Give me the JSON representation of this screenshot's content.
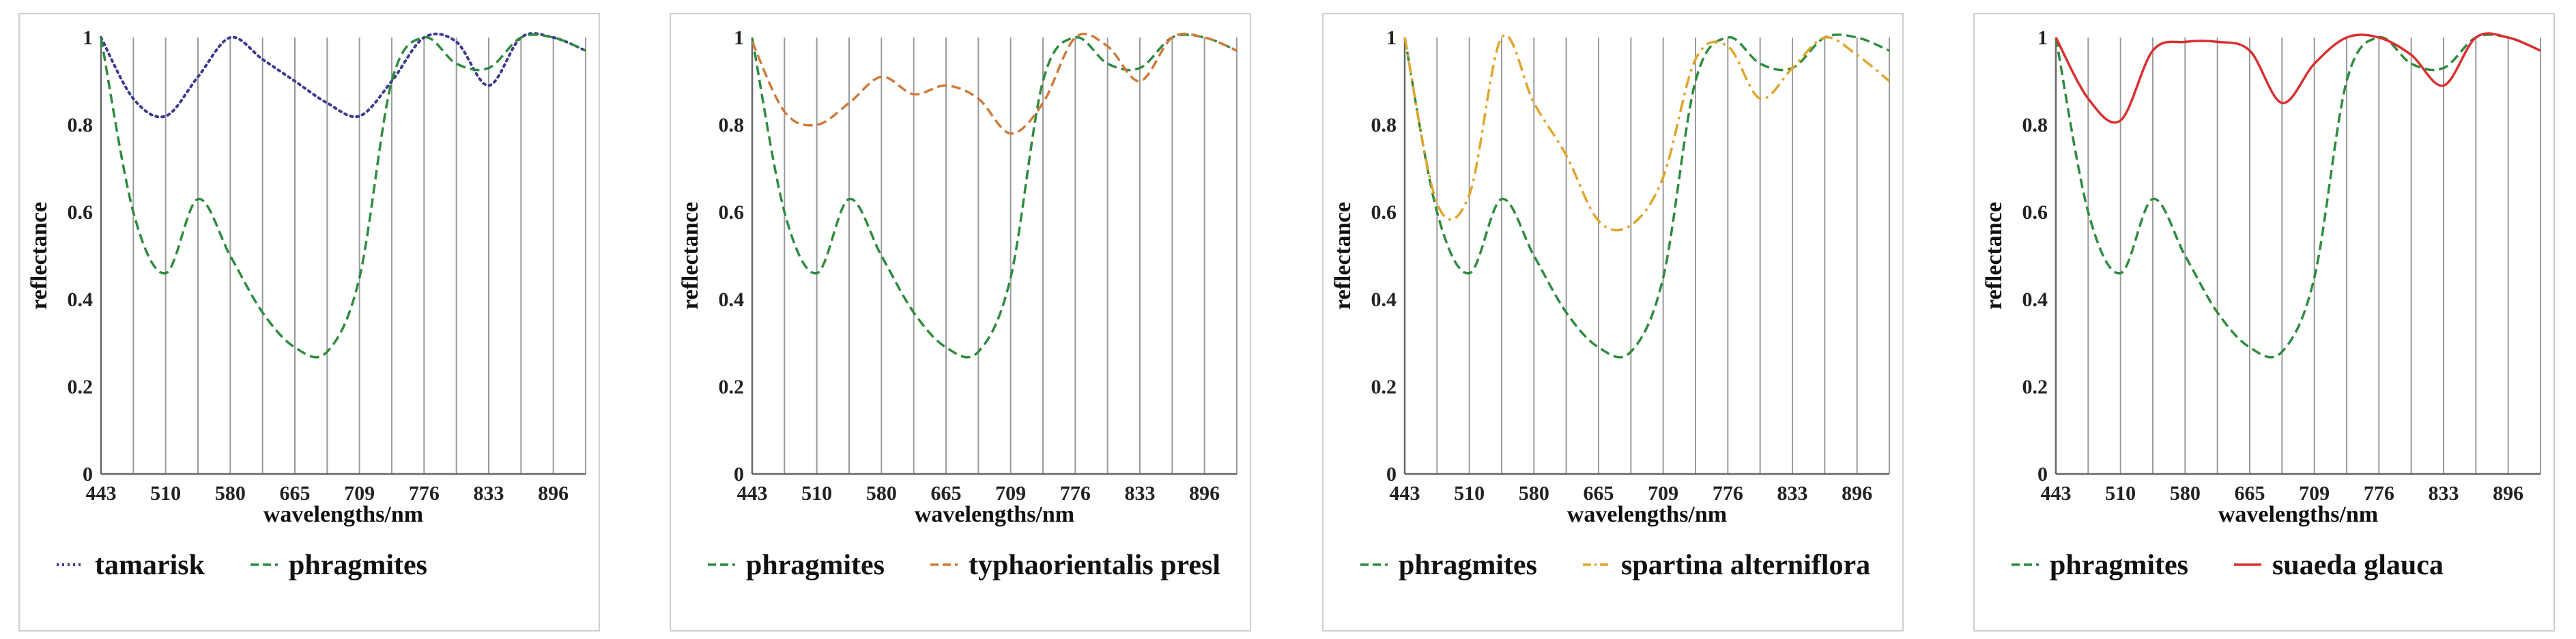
{
  "chart_data": [
    {
      "type": "line",
      "xlabel": "wavelengths/nm",
      "ylabel": "reflectance",
      "xticks": [
        "443",
        "510",
        "580",
        "665",
        "709",
        "776",
        "833",
        "896"
      ],
      "yticks": [
        "0",
        "0.2",
        "0.4",
        "0.6",
        "0.8",
        "1"
      ],
      "ylim": [
        0,
        1
      ],
      "x_positions": [
        0,
        1,
        2,
        3,
        4,
        5,
        6,
        7,
        8,
        9,
        10,
        11,
        12,
        13,
        14,
        15
      ],
      "legend": [
        "tamarisk",
        "phragmites"
      ],
      "series": [
        {
          "name": "tamarisk",
          "color": "#3b3b8f",
          "dash": "dotted",
          "values": [
            1.0,
            0.86,
            0.82,
            0.91,
            1.0,
            0.95,
            0.9,
            0.85,
            0.82,
            0.9,
            1.0,
            0.99,
            0.89,
            1.0,
            1.0,
            0.97
          ]
        },
        {
          "name": "phragmites",
          "color": "#2e8b3e",
          "dash": "dashed",
          "values": [
            1.0,
            0.6,
            0.46,
            0.63,
            0.5,
            0.37,
            0.29,
            0.28,
            0.45,
            0.9,
            1.0,
            0.94,
            0.93,
            1.0,
            1.0,
            0.97
          ]
        }
      ]
    },
    {
      "type": "line",
      "xlabel": "wavelengths/nm",
      "ylabel": "reflectance",
      "xticks": [
        "443",
        "510",
        "580",
        "665",
        "709",
        "776",
        "833",
        "896"
      ],
      "yticks": [
        "0",
        "0.2",
        "0.4",
        "0.6",
        "0.8",
        "1"
      ],
      "ylim": [
        0,
        1
      ],
      "x_positions": [
        0,
        1,
        2,
        3,
        4,
        5,
        6,
        7,
        8,
        9,
        10,
        11,
        12,
        13,
        14,
        15
      ],
      "legend": [
        "phragmites",
        "typhaorientalis presl"
      ],
      "series": [
        {
          "name": "phragmites",
          "color": "#2e8b3e",
          "dash": "dashed",
          "values": [
            1.0,
            0.6,
            0.46,
            0.63,
            0.5,
            0.37,
            0.29,
            0.28,
            0.45,
            0.9,
            1.0,
            0.94,
            0.93,
            1.0,
            1.0,
            0.97
          ]
        },
        {
          "name": "typhaorientalis presl",
          "color": "#d07a3a",
          "dash": "dashed",
          "values": [
            0.99,
            0.83,
            0.8,
            0.85,
            0.91,
            0.87,
            0.89,
            0.86,
            0.78,
            0.85,
            1.0,
            0.98,
            0.9,
            1.0,
            1.0,
            0.97
          ]
        }
      ]
    },
    {
      "type": "line",
      "xlabel": "wavelengths/nm",
      "ylabel": "reflectance",
      "xticks": [
        "443",
        "510",
        "580",
        "665",
        "709",
        "776",
        "833",
        "896"
      ],
      "yticks": [
        "0",
        "0.2",
        "0.4",
        "0.6",
        "0.8",
        "1"
      ],
      "ylim": [
        0,
        1
      ],
      "x_positions": [
        0,
        1,
        2,
        3,
        4,
        5,
        6,
        7,
        8,
        9,
        10,
        11,
        12,
        13,
        14,
        15
      ],
      "legend": [
        "phragmites",
        "spartina alterniflora"
      ],
      "series": [
        {
          "name": "phragmites",
          "color": "#2e8b3e",
          "dash": "dashed",
          "values": [
            1.0,
            0.6,
            0.46,
            0.63,
            0.5,
            0.37,
            0.29,
            0.28,
            0.45,
            0.9,
            1.0,
            0.94,
            0.93,
            1.0,
            1.0,
            0.97
          ]
        },
        {
          "name": "spartina alterniflora",
          "color": "#e0a62a",
          "dash": "dashdot",
          "values": [
            1.0,
            0.62,
            0.64,
            1.0,
            0.85,
            0.73,
            0.58,
            0.57,
            0.68,
            0.95,
            0.98,
            0.86,
            0.93,
            1.0,
            0.96,
            0.9
          ]
        }
      ]
    },
    {
      "type": "line",
      "xlabel": "wavelengths/nm",
      "ylabel": "reflectance",
      "xticks": [
        "443",
        "510",
        "580",
        "665",
        "709",
        "776",
        "833",
        "896"
      ],
      "yticks": [
        "0",
        "0.2",
        "0.4",
        "0.6",
        "0.8",
        "1"
      ],
      "ylim": [
        0,
        1
      ],
      "x_positions": [
        0,
        1,
        2,
        3,
        4,
        5,
        6,
        7,
        8,
        9,
        10,
        11,
        12,
        13,
        14,
        15
      ],
      "legend": [
        "phragmites",
        "suaeda glauca"
      ],
      "series": [
        {
          "name": "phragmites",
          "color": "#2e8b3e",
          "dash": "dashed",
          "values": [
            1.0,
            0.6,
            0.46,
            0.63,
            0.5,
            0.37,
            0.29,
            0.28,
            0.45,
            0.9,
            1.0,
            0.94,
            0.93,
            1.0,
            1.0,
            0.97
          ]
        },
        {
          "name": "suaeda glauca",
          "color": "#d93030",
          "dash": "solid",
          "values": [
            1.0,
            0.86,
            0.81,
            0.97,
            0.99,
            0.99,
            0.97,
            0.85,
            0.94,
            1.0,
            1.0,
            0.96,
            0.89,
            1.0,
            1.0,
            0.97
          ]
        }
      ]
    }
  ]
}
